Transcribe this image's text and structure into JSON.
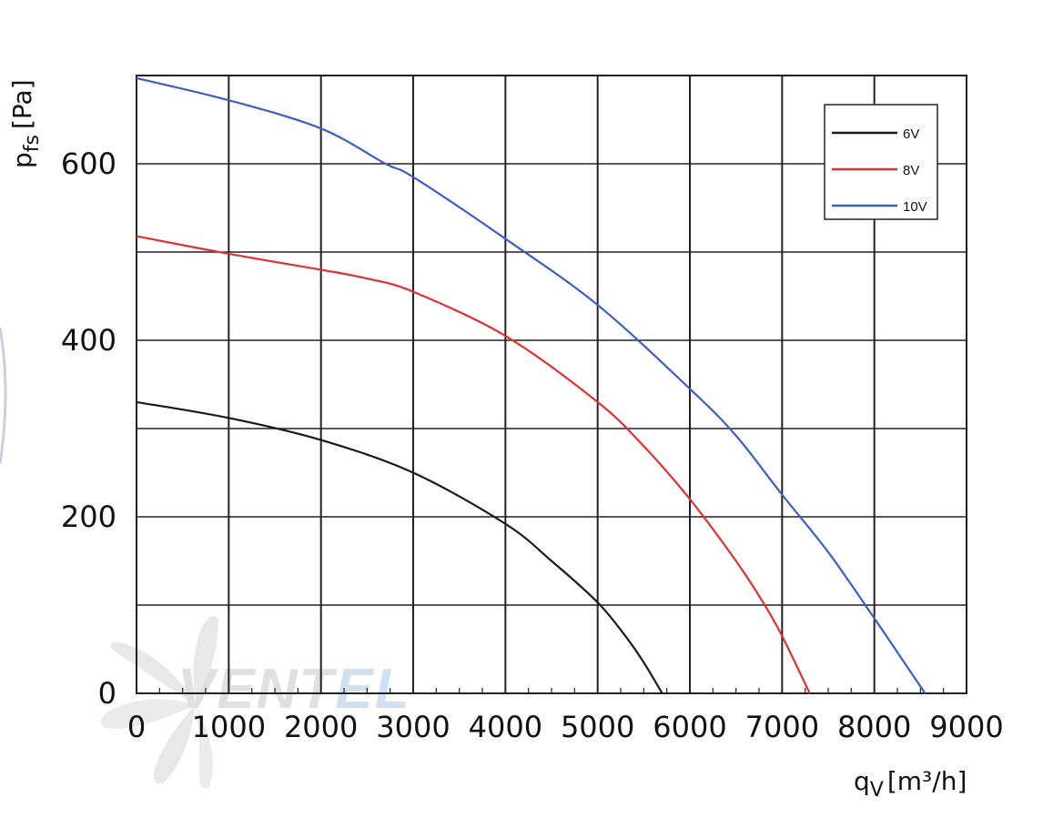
{
  "chart_data": {
    "type": "line",
    "title": "",
    "xlabel_main": "q",
    "xlabel_sub": "V",
    "xlabel_unit": "[m³/h]",
    "ylabel_main": "p",
    "ylabel_sub": "fs",
    "ylabel_unit": "[Pa]",
    "xlim": [
      0,
      9000
    ],
    "ylim": [
      0,
      700
    ],
    "x_ticks": [
      0,
      1000,
      2000,
      3000,
      4000,
      5000,
      6000,
      7000,
      8000,
      9000
    ],
    "x_tick_labels": [
      "0",
      "1000",
      "2000",
      "3000",
      "4000",
      "5000",
      "6000",
      "7000",
      "8000",
      "9000"
    ],
    "y_ticks": [
      0,
      200,
      400,
      600
    ],
    "y_tick_labels": [
      "0",
      "200",
      "400",
      "600"
    ],
    "grid": true,
    "legend_position": "top-right",
    "series": [
      {
        "name": "6V",
        "color": "#1a1a1a",
        "x": [
          0,
          1000,
          2000,
          3000,
          4000,
          4500,
          5000,
          5300,
          5500,
          5700
        ],
        "y": [
          330,
          312,
          287,
          250,
          192,
          150,
          103,
          65,
          35,
          0
        ]
      },
      {
        "name": "8V",
        "color": "#e03030",
        "x": [
          0,
          1000,
          2000,
          2500,
          3000,
          4000,
          5000,
          5500,
          6000,
          6500,
          6800,
          7000,
          7300
        ],
        "y": [
          518,
          498,
          480,
          470,
          455,
          405,
          330,
          280,
          220,
          150,
          102,
          65,
          0
        ]
      },
      {
        "name": "10V",
        "color": "#3a5fc0",
        "x": [
          0,
          1000,
          2000,
          2700,
          3000,
          4000,
          5000,
          6000,
          6500,
          7000,
          7500,
          8000,
          8550
        ],
        "y": [
          697,
          672,
          640,
          600,
          585,
          515,
          440,
          345,
          292,
          225,
          160,
          85,
          0
        ]
      }
    ]
  },
  "watermark": {
    "text": "VENTEL",
    "color_main": "#c8c8c8",
    "color_accent": "#a9c8e8"
  }
}
